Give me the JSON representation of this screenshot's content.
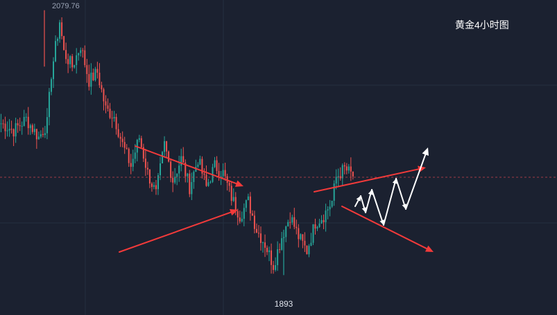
{
  "chart_data": {
    "type": "candlestick",
    "title": "黄金4小时图",
    "high_label": "2079.76",
    "low_label": "1893",
    "ylim": [
      1880,
      2085
    ],
    "colors": {
      "background": "#1b2130",
      "grid": "#243040",
      "up": "#26a69a",
      "down": "#ef5350",
      "arrow_red": "#f23a3a",
      "arrow_white": "#ffffff",
      "price_line": "#c2434c"
    },
    "current_price": 1962,
    "path_keypoints": [
      [
        0,
        2000
      ],
      [
        6,
        1995
      ],
      [
        12,
        2003
      ],
      [
        18,
        1990
      ],
      [
        22,
        2000
      ],
      [
        24,
        2035
      ],
      [
        28,
        2072
      ],
      [
        30,
        2050
      ],
      [
        34,
        2040
      ],
      [
        38,
        2055
      ],
      [
        42,
        2030
      ],
      [
        46,
        2036
      ],
      [
        50,
        2010
      ],
      [
        54,
        2005
      ],
      [
        58,
        1985
      ],
      [
        62,
        1970
      ],
      [
        66,
        1990
      ],
      [
        70,
        1965
      ],
      [
        74,
        1950
      ],
      [
        78,
        1985
      ],
      [
        82,
        1960
      ],
      [
        86,
        1975
      ],
      [
        90,
        1955
      ],
      [
        94,
        1975
      ],
      [
        98,
        1955
      ],
      [
        102,
        1970
      ],
      [
        106,
        1965
      ],
      [
        110,
        1948
      ],
      [
        114,
        1935
      ],
      [
        118,
        1945
      ],
      [
        122,
        1925
      ],
      [
        126,
        1915
      ],
      [
        130,
        1900
      ],
      [
        134,
        1920
      ],
      [
        138,
        1935
      ],
      [
        142,
        1920
      ],
      [
        146,
        1910
      ],
      [
        150,
        1930
      ],
      [
        154,
        1935
      ],
      [
        158,
        1945
      ],
      [
        160,
        1962
      ],
      [
        164,
        1968
      ],
      [
        168,
        1963
      ]
    ],
    "annotations": {
      "red_arrows": [
        [
          [
            195,
            211
          ],
          [
            351,
            269
          ]
        ],
        [
          [
            172,
            364
          ],
          [
            343,
            303
          ]
        ],
        [
          [
            453,
            277
          ],
          [
            614,
            242
          ]
        ],
        [
          [
            493,
            298
          ],
          [
            625,
            364
          ]
        ]
      ],
      "white_zigzag": [
        [
          512,
          298
        ],
        [
          520,
          283
        ],
        [
          527,
          307
        ],
        [
          536,
          274
        ],
        [
          553,
          325
        ],
        [
          571,
          258
        ],
        [
          585,
          302
        ],
        [
          617,
          213
        ]
      ]
    }
  }
}
